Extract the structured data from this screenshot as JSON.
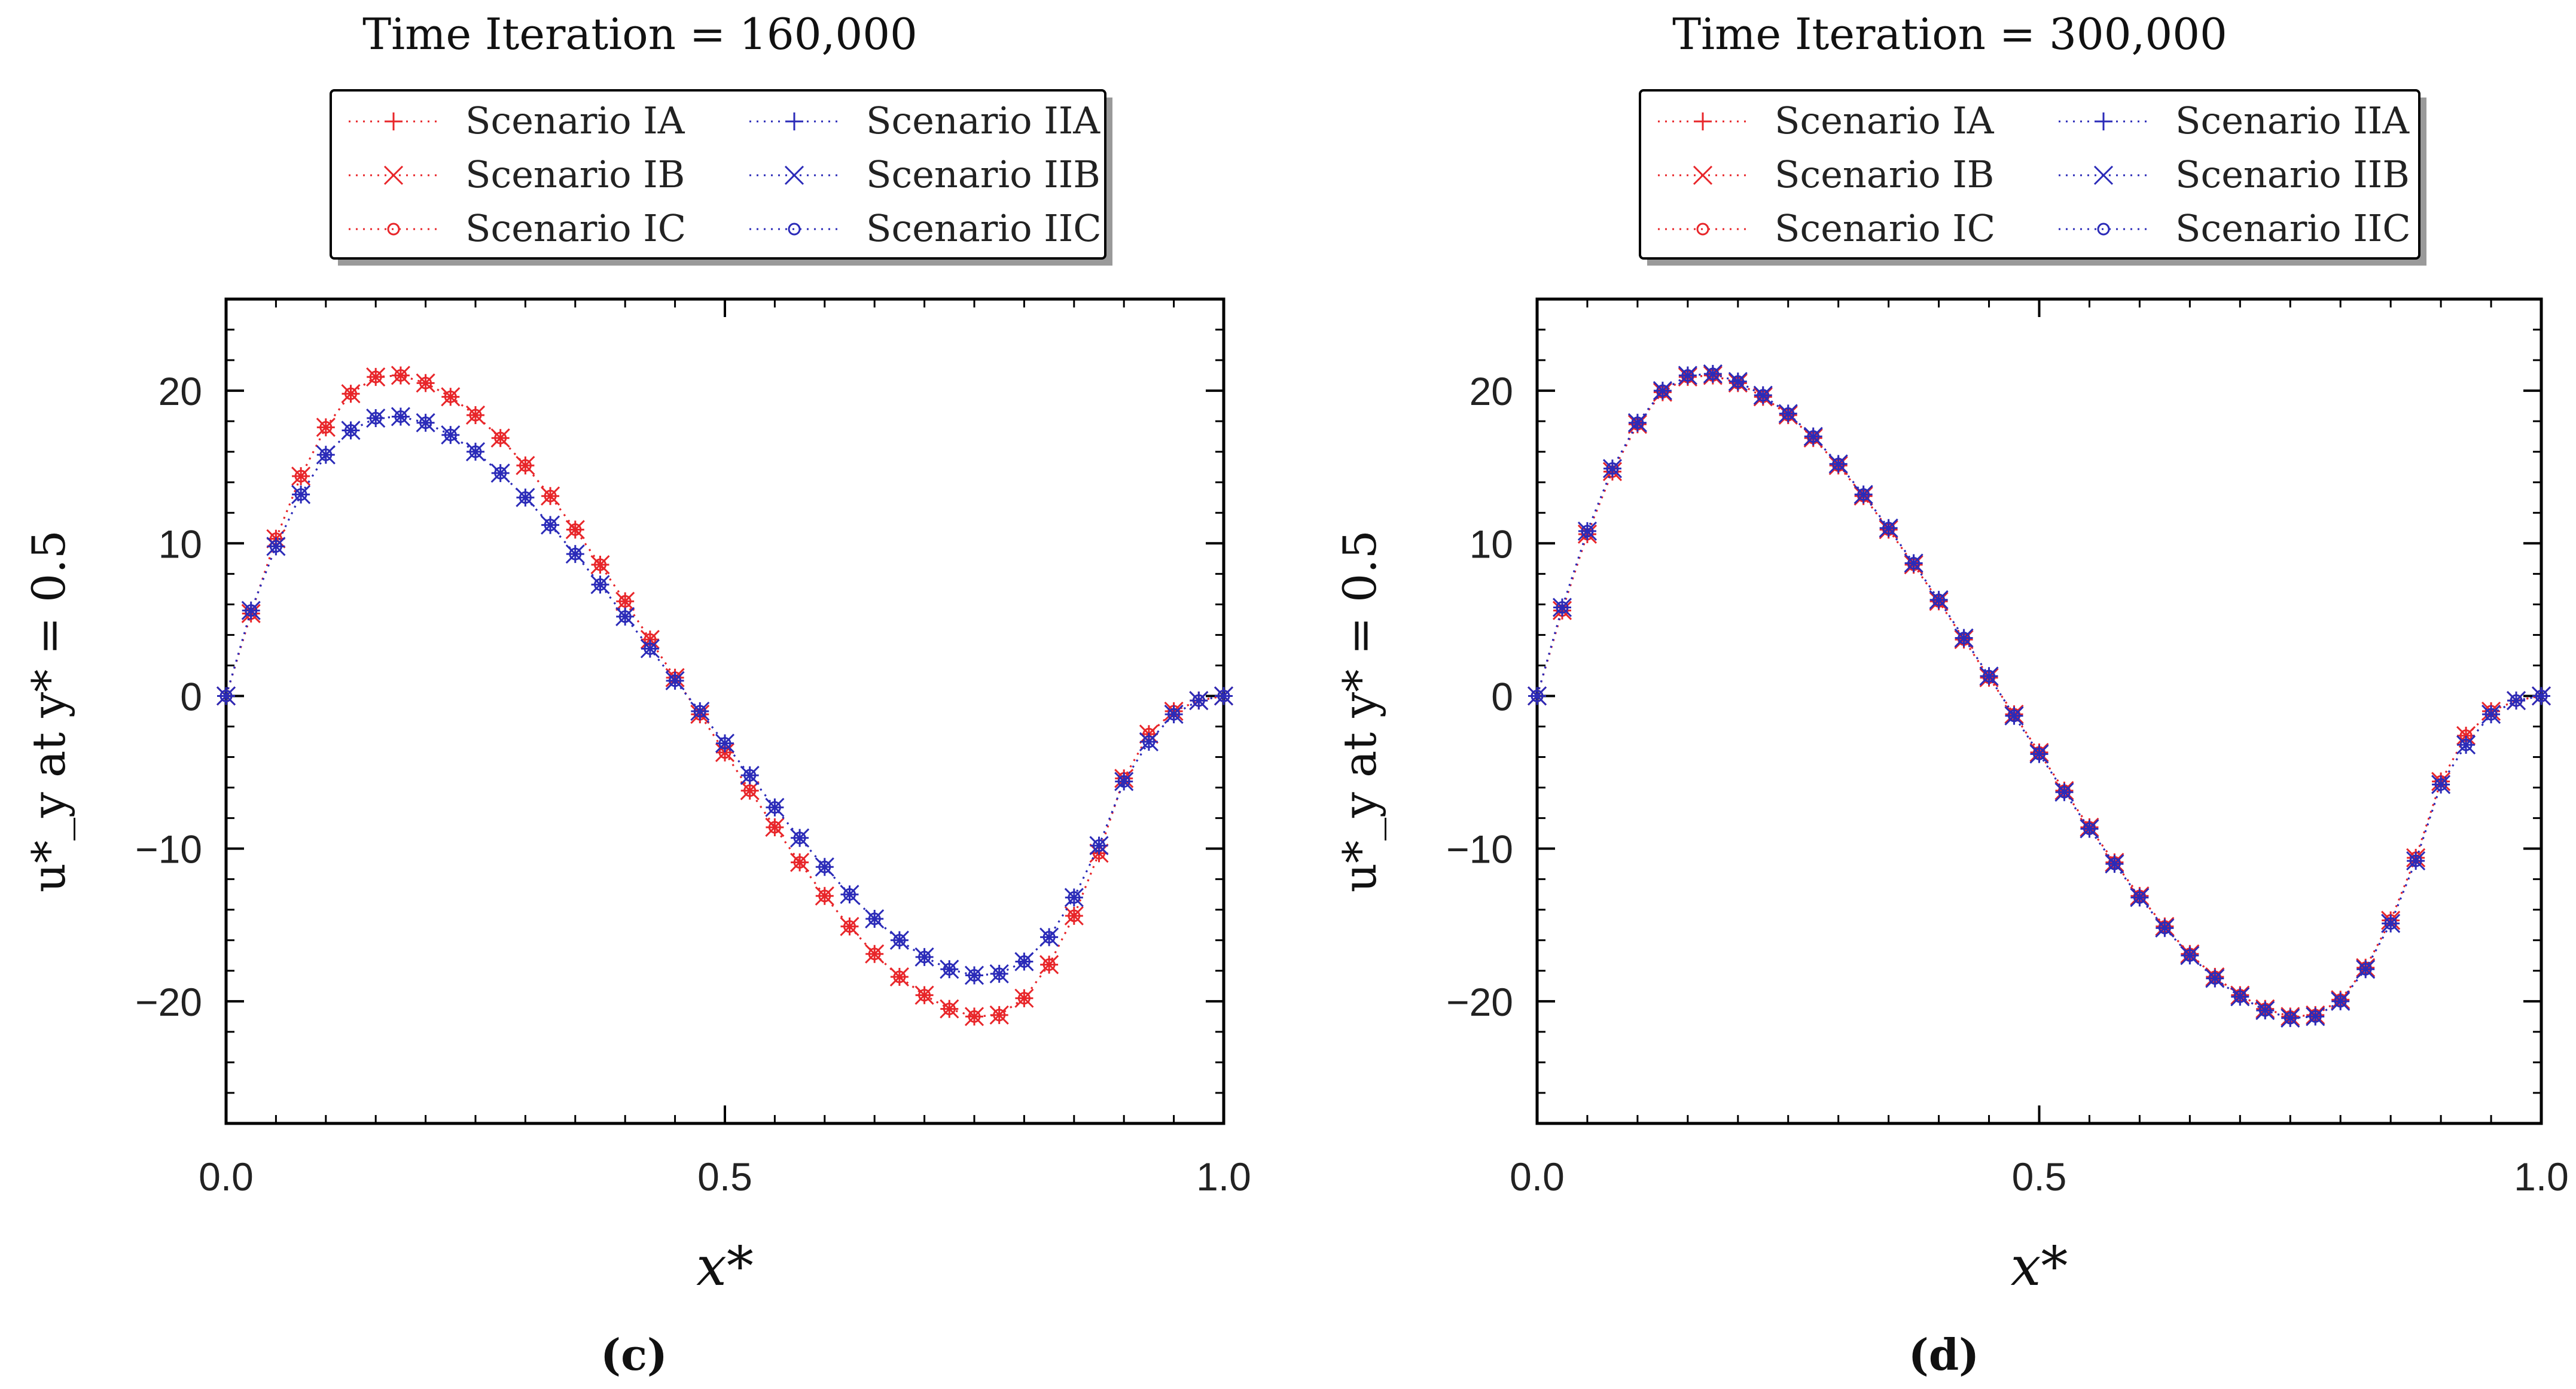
{
  "chart_data": [
    {
      "type": "line",
      "title": "Time Iteration = 160,000",
      "xlabel": "x*",
      "ylabel": "u*_y at y* = 0.5",
      "panel_label": "(c)",
      "xlim": [
        0.0,
        1.0
      ],
      "ylim": [
        -28,
        26
      ],
      "xticks": [
        "0.0",
        "0.5",
        "1.0"
      ],
      "yticks": [
        "20",
        "10",
        "0",
        "−10",
        "−20"
      ],
      "grid": false,
      "legend_position": "top",
      "x": [
        0.0,
        0.025,
        0.05,
        0.075,
        0.1,
        0.125,
        0.15,
        0.175,
        0.2,
        0.225,
        0.25,
        0.275,
        0.3,
        0.325,
        0.35,
        0.375,
        0.4,
        0.425,
        0.45,
        0.475,
        0.5,
        0.525,
        0.55,
        0.575,
        0.6,
        0.625,
        0.65,
        0.675,
        0.7,
        0.725,
        0.75,
        0.775,
        0.8,
        0.825,
        0.85,
        0.875,
        0.9,
        0.925,
        0.95,
        0.975,
        1.0
      ],
      "series": [
        {
          "name": "Scenario IA",
          "color": "#e8262a",
          "marker": "plus",
          "values": [
            0.0,
            5.4,
            10.3,
            14.4,
            17.6,
            19.8,
            20.9,
            21.0,
            20.5,
            19.6,
            18.4,
            16.9,
            15.1,
            13.1,
            10.9,
            8.6,
            6.2,
            3.7,
            1.2,
            -1.2,
            -3.7,
            -6.2,
            -8.6,
            -10.9,
            -13.1,
            -15.1,
            -16.9,
            -18.4,
            -19.6,
            -20.5,
            -21.0,
            -20.9,
            -19.8,
            -17.6,
            -14.4,
            -10.3,
            -5.4,
            -2.5,
            -1.0,
            -0.3,
            0.0
          ]
        },
        {
          "name": "Scenario IB",
          "color": "#e8262a",
          "marker": "x",
          "values": [
            0.0,
            5.4,
            10.3,
            14.4,
            17.6,
            19.8,
            20.9,
            21.0,
            20.5,
            19.6,
            18.4,
            16.9,
            15.1,
            13.1,
            10.9,
            8.6,
            6.2,
            3.7,
            1.2,
            -1.2,
            -3.7,
            -6.2,
            -8.6,
            -10.9,
            -13.1,
            -15.1,
            -16.9,
            -18.4,
            -19.6,
            -20.5,
            -21.0,
            -20.9,
            -19.8,
            -17.6,
            -14.4,
            -10.3,
            -5.4,
            -2.5,
            -1.0,
            -0.3,
            0.0
          ]
        },
        {
          "name": "Scenario IC",
          "color": "#e8262a",
          "marker": "circle",
          "values": [
            0.0,
            5.4,
            10.3,
            14.4,
            17.6,
            19.8,
            20.9,
            21.0,
            20.5,
            19.6,
            18.4,
            16.9,
            15.1,
            13.1,
            10.9,
            8.6,
            6.2,
            3.7,
            1.2,
            -1.2,
            -3.7,
            -6.2,
            -8.6,
            -10.9,
            -13.1,
            -15.1,
            -16.9,
            -18.4,
            -19.6,
            -20.5,
            -21.0,
            -20.9,
            -19.8,
            -17.6,
            -14.4,
            -10.3,
            -5.4,
            -2.5,
            -1.0,
            -0.3,
            0.0
          ]
        },
        {
          "name": "Scenario IIA",
          "color": "#2b2bb8",
          "marker": "plus",
          "values": [
            0.0,
            5.6,
            9.8,
            13.2,
            15.8,
            17.4,
            18.2,
            18.3,
            17.9,
            17.1,
            16.0,
            14.6,
            13.0,
            11.2,
            9.3,
            7.3,
            5.2,
            3.1,
            1.0,
            -1.0,
            -3.1,
            -5.2,
            -7.3,
            -9.3,
            -11.2,
            -13.0,
            -14.6,
            -16.0,
            -17.1,
            -17.9,
            -18.3,
            -18.2,
            -17.4,
            -15.8,
            -13.2,
            -9.8,
            -5.6,
            -3.0,
            -1.2,
            -0.3,
            0.0
          ]
        },
        {
          "name": "Scenario IIB",
          "color": "#2b2bb8",
          "marker": "x",
          "values": [
            0.0,
            5.6,
            9.8,
            13.2,
            15.8,
            17.4,
            18.2,
            18.3,
            17.9,
            17.1,
            16.0,
            14.6,
            13.0,
            11.2,
            9.3,
            7.3,
            5.2,
            3.1,
            1.0,
            -1.0,
            -3.1,
            -5.2,
            -7.3,
            -9.3,
            -11.2,
            -13.0,
            -14.6,
            -16.0,
            -17.1,
            -17.9,
            -18.3,
            -18.2,
            -17.4,
            -15.8,
            -13.2,
            -9.8,
            -5.6,
            -3.0,
            -1.2,
            -0.3,
            0.0
          ]
        },
        {
          "name": "Scenario IIC",
          "color": "#2b2bb8",
          "marker": "circle",
          "values": [
            0.0,
            5.6,
            9.8,
            13.2,
            15.8,
            17.4,
            18.2,
            18.3,
            17.9,
            17.1,
            16.0,
            14.6,
            13.0,
            11.2,
            9.3,
            7.3,
            5.2,
            3.1,
            1.0,
            -1.0,
            -3.1,
            -5.2,
            -7.3,
            -9.3,
            -11.2,
            -13.0,
            -14.6,
            -16.0,
            -17.1,
            -17.9,
            -18.3,
            -18.2,
            -17.4,
            -15.8,
            -13.2,
            -9.8,
            -5.6,
            -3.0,
            -1.2,
            -0.3,
            0.0
          ]
        }
      ]
    },
    {
      "type": "line",
      "title": "Time Iteration = 300,000",
      "xlabel": "x*",
      "ylabel": "u*_y at y* = 0.5",
      "panel_label": "(d)",
      "xlim": [
        0.0,
        1.0
      ],
      "ylim": [
        -28,
        26
      ],
      "xticks": [
        "0.0",
        "0.5",
        "1.0"
      ],
      "yticks": [
        "20",
        "10",
        "0",
        "−10",
        "−20"
      ],
      "grid": false,
      "legend_position": "top",
      "x": [
        0.0,
        0.025,
        0.05,
        0.075,
        0.1,
        0.125,
        0.15,
        0.175,
        0.2,
        0.225,
        0.25,
        0.275,
        0.3,
        0.325,
        0.35,
        0.375,
        0.4,
        0.425,
        0.45,
        0.475,
        0.5,
        0.525,
        0.55,
        0.575,
        0.6,
        0.625,
        0.65,
        0.675,
        0.7,
        0.725,
        0.75,
        0.775,
        0.8,
        0.825,
        0.85,
        0.875,
        0.9,
        0.925,
        0.95,
        0.975,
        1.0
      ],
      "series": [
        {
          "name": "Scenario IA",
          "color": "#e8262a",
          "marker": "plus",
          "values": [
            0.0,
            5.6,
            10.6,
            14.7,
            17.8,
            19.9,
            20.9,
            21.0,
            20.5,
            19.6,
            18.4,
            16.9,
            15.1,
            13.1,
            10.9,
            8.6,
            6.2,
            3.7,
            1.2,
            -1.2,
            -3.7,
            -6.2,
            -8.6,
            -10.9,
            -13.1,
            -15.1,
            -16.9,
            -18.4,
            -19.6,
            -20.5,
            -21.0,
            -20.9,
            -19.9,
            -17.8,
            -14.7,
            -10.6,
            -5.6,
            -2.6,
            -1.0,
            -0.3,
            0.0
          ]
        },
        {
          "name": "Scenario IB",
          "color": "#e8262a",
          "marker": "x",
          "values": [
            0.0,
            5.6,
            10.6,
            14.7,
            17.8,
            19.9,
            20.9,
            21.0,
            20.5,
            19.6,
            18.4,
            16.9,
            15.1,
            13.1,
            10.9,
            8.6,
            6.2,
            3.7,
            1.2,
            -1.2,
            -3.7,
            -6.2,
            -8.6,
            -10.9,
            -13.1,
            -15.1,
            -16.9,
            -18.4,
            -19.6,
            -20.5,
            -21.0,
            -20.9,
            -19.9,
            -17.8,
            -14.7,
            -10.6,
            -5.6,
            -2.6,
            -1.0,
            -0.3,
            0.0
          ]
        },
        {
          "name": "Scenario IC",
          "color": "#e8262a",
          "marker": "circle",
          "values": [
            0.0,
            5.6,
            10.6,
            14.7,
            17.8,
            19.9,
            20.9,
            21.0,
            20.5,
            19.6,
            18.4,
            16.9,
            15.1,
            13.1,
            10.9,
            8.6,
            6.2,
            3.7,
            1.2,
            -1.2,
            -3.7,
            -6.2,
            -8.6,
            -10.9,
            -13.1,
            -15.1,
            -16.9,
            -18.4,
            -19.6,
            -20.5,
            -21.0,
            -20.9,
            -19.9,
            -17.8,
            -14.7,
            -10.6,
            -5.6,
            -2.6,
            -1.0,
            -0.3,
            0.0
          ]
        },
        {
          "name": "Scenario IIA",
          "color": "#2b2bb8",
          "marker": "plus",
          "values": [
            0.0,
            5.8,
            10.8,
            14.9,
            17.9,
            20.0,
            21.0,
            21.1,
            20.6,
            19.7,
            18.5,
            17.0,
            15.2,
            13.2,
            11.0,
            8.7,
            6.3,
            3.8,
            1.3,
            -1.3,
            -3.8,
            -6.3,
            -8.7,
            -11.0,
            -13.2,
            -15.2,
            -17.0,
            -18.5,
            -19.7,
            -20.6,
            -21.1,
            -21.0,
            -20.0,
            -17.9,
            -14.9,
            -10.8,
            -5.8,
            -3.2,
            -1.2,
            -0.3,
            0.0
          ]
        },
        {
          "name": "Scenario IIB",
          "color": "#2b2bb8",
          "marker": "x",
          "values": [
            0.0,
            5.8,
            10.8,
            14.9,
            17.9,
            20.0,
            21.0,
            21.1,
            20.6,
            19.7,
            18.5,
            17.0,
            15.2,
            13.2,
            11.0,
            8.7,
            6.3,
            3.8,
            1.3,
            -1.3,
            -3.8,
            -6.3,
            -8.7,
            -11.0,
            -13.2,
            -15.2,
            -17.0,
            -18.5,
            -19.7,
            -20.6,
            -21.1,
            -21.0,
            -20.0,
            -17.9,
            -14.9,
            -10.8,
            -5.8,
            -3.2,
            -1.2,
            -0.3,
            0.0
          ]
        },
        {
          "name": "Scenario IIC",
          "color": "#2b2bb8",
          "marker": "circle",
          "values": [
            0.0,
            5.8,
            10.8,
            14.9,
            17.9,
            20.0,
            21.0,
            21.1,
            20.6,
            19.7,
            18.5,
            17.0,
            15.2,
            13.2,
            11.0,
            8.7,
            6.3,
            3.8,
            1.3,
            -1.3,
            -3.8,
            -6.3,
            -8.7,
            -11.0,
            -13.2,
            -15.2,
            -17.0,
            -18.5,
            -19.7,
            -20.6,
            -21.1,
            -21.0,
            -20.0,
            -17.9,
            -14.9,
            -10.8,
            -5.8,
            -3.2,
            -1.2,
            -0.3,
            0.0
          ]
        }
      ]
    }
  ]
}
